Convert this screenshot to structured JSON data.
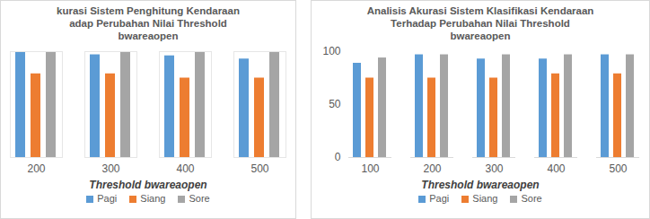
{
  "chart_data": [
    {
      "type": "bar",
      "title": "kurasi Sistem Penghitung Kendaraan\nadap Perubahan Nilai Threshold\nbwareaopen",
      "x_label": "Threshold bwareaopen",
      "categories": [
        "200",
        "300",
        "400",
        "500"
      ],
      "series": [
        {
          "name": "Pagi",
          "color": "#5b9bd5",
          "values": [
            100,
            97,
            96,
            93
          ]
        },
        {
          "name": "Siang",
          "color": "#ed7d31",
          "values": [
            79,
            79,
            75,
            75
          ]
        },
        {
          "name": "Sore",
          "color": "#a5a5a5",
          "values": [
            100,
            100,
            100,
            100
          ]
        }
      ],
      "ylim": [
        0,
        100
      ],
      "tick_labels": "x",
      "grid": false,
      "legend": "bottom"
    },
    {
      "type": "bar",
      "title": "Analisis Akurasi Sistem Klasifikasi Kendaraan\nTerhadap Perubahan Nilai Threshold\nbwareaopen",
      "x_label": "Threshold bwareaopen",
      "categories": [
        "100",
        "200",
        "300",
        "400",
        "500"
      ],
      "series": [
        {
          "name": "Pagi",
          "color": "#5b9bd5",
          "values": [
            89,
            97,
            93,
            93,
            97
          ]
        },
        {
          "name": "Siang",
          "color": "#ed7d31",
          "values": [
            75,
            75,
            75,
            79,
            79
          ]
        },
        {
          "name": "Sore",
          "color": "#a5a5a5",
          "values": [
            94,
            97,
            97,
            97,
            97
          ]
        }
      ],
      "ylim": [
        0,
        100
      ],
      "yticks": [
        0,
        50,
        100
      ],
      "grid": false,
      "legend": "bottom"
    }
  ]
}
